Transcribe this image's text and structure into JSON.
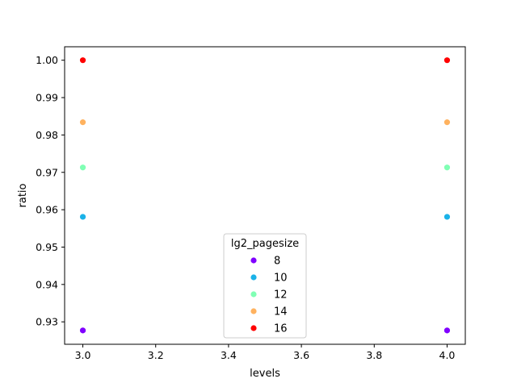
{
  "chart_data": {
    "type": "scatter",
    "xlabel": "levels",
    "ylabel": "ratio",
    "xlim": [
      2.95,
      4.05
    ],
    "ylim": [
      0.924,
      1.0036
    ],
    "xticks": [
      "3.0",
      "3.2",
      "3.4",
      "3.6",
      "3.8",
      "4.0"
    ],
    "yticks": [
      "0.93",
      "0.94",
      "0.95",
      "0.96",
      "0.97",
      "0.98",
      "0.99",
      "1.00"
    ],
    "grid": false,
    "legend": {
      "title": "lg2_pagesize",
      "placement": "lower-center"
    },
    "series": [
      {
        "name": "8",
        "color": "#8000ff",
        "points": [
          [
            3.0,
            0.9277
          ],
          [
            4.0,
            0.9277
          ]
        ]
      },
      {
        "name": "10",
        "color": "#1ab2e8",
        "points": [
          [
            3.0,
            0.9581
          ],
          [
            4.0,
            0.9581
          ]
        ]
      },
      {
        "name": "12",
        "color": "#80ffb4",
        "points": [
          [
            3.0,
            0.9713
          ],
          [
            4.0,
            0.9713
          ]
        ]
      },
      {
        "name": "14",
        "color": "#ffb25f",
        "points": [
          [
            3.0,
            0.9834
          ],
          [
            4.0,
            0.9834
          ]
        ]
      },
      {
        "name": "16",
        "color": "#ff0000",
        "points": [
          [
            3.0,
            1.0
          ],
          [
            4.0,
            1.0
          ]
        ]
      }
    ]
  }
}
